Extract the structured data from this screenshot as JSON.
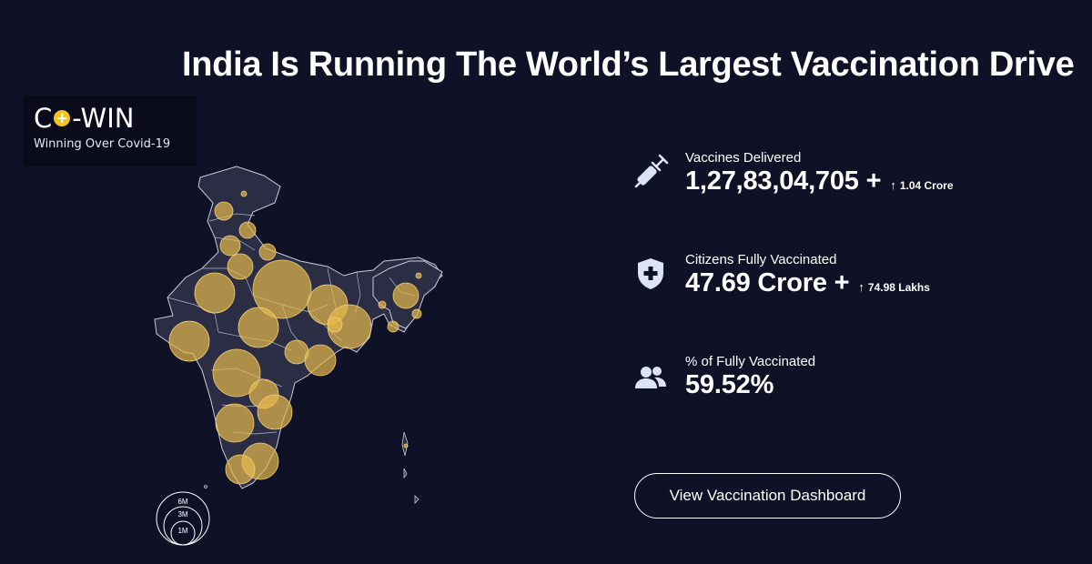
{
  "headline": "India Is Running The World’s Largest Vaccination Drive",
  "logo": {
    "name_part1": "C",
    "name_part2": "-WIN",
    "plus_symbol": "+",
    "tagline": "Winning Over Covid-19"
  },
  "legend": {
    "labels": [
      "6M",
      "3M",
      "1M"
    ]
  },
  "stats": [
    {
      "icon": "syringe-icon",
      "label": "Vaccines Delivered",
      "value": "1,27,83,04,705 +",
      "delta_arrow": "↑",
      "delta": "1.04 Crore"
    },
    {
      "icon": "shield-plus-icon",
      "label": "Citizens Fully Vaccinated",
      "value": "47.69 Crore +",
      "delta_arrow": "↑",
      "delta": "74.98 Lakhs"
    },
    {
      "icon": "people-icon",
      "label": "% of Fully Vaccinated",
      "value": "59.52%",
      "delta_arrow": "",
      "delta": ""
    }
  ],
  "cta": {
    "label": "View Vaccination Dashboard"
  },
  "colors": {
    "background": "#0f1226",
    "map_fill": "#2b2d45",
    "bubble": "#e7b94d",
    "icon": "#dde2f5"
  }
}
